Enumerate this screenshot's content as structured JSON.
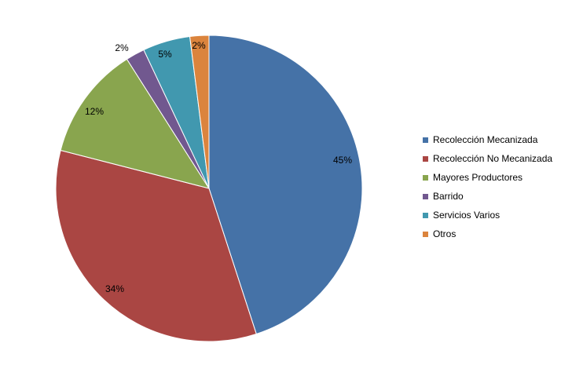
{
  "chart_data": {
    "type": "pie",
    "title": "",
    "legend_position": "right",
    "start_angle_deg": 0,
    "direction": "clockwise",
    "slices": [
      {
        "name": "Recolección Mecanizada",
        "value": 45,
        "label": "45%",
        "color": "#4572A7"
      },
      {
        "name": "Recolección No Mecanizada",
        "value": 34,
        "label": "34%",
        "color": "#AA4643"
      },
      {
        "name": "Mayores Productores",
        "value": 12,
        "label": "12%",
        "color": "#89A54E"
      },
      {
        "name": "Barrido",
        "value": 2,
        "label": "2%",
        "color": "#71588F"
      },
      {
        "name": "Servicios Varios",
        "value": 5,
        "label": "5%",
        "color": "#4198AF"
      },
      {
        "name": "Otros",
        "value": 2,
        "label": "2%",
        "color": "#DB843D"
      }
    ]
  }
}
